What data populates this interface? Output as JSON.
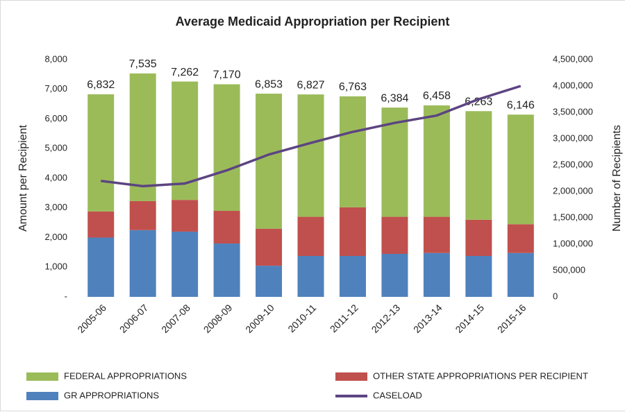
{
  "chart_data": {
    "type": "bar",
    "stacked": true,
    "title": "Average Medicaid Appropriation per Recipient",
    "y_label": "Amount per Recipient",
    "y2_label": "Number of Recipients",
    "categories": [
      "2005-06",
      "2006-07",
      "2007-08",
      "2008-09",
      "2009-10",
      "2010-11",
      "2011-12",
      "2012-13",
      "2013-14",
      "2014-15",
      "2015-16"
    ],
    "series": [
      {
        "name": "GR APPROPRIATIONS",
        "color": "#4f81bd",
        "type": "bar",
        "values": [
          2000,
          2250,
          2200,
          1800,
          1050,
          1380,
          1380,
          1450,
          1480,
          1380,
          1480
        ]
      },
      {
        "name": "OTHER STATE APPROPRIATIONS PER RECIPIENT",
        "color": "#c0504d",
        "type": "bar",
        "values": [
          880,
          980,
          1070,
          1100,
          1250,
          1320,
          1640,
          1250,
          1220,
          1220,
          970
        ]
      },
      {
        "name": "FEDERAL APPROPRIATIONS",
        "color": "#9bbb59",
        "type": "bar",
        "values": [
          3952,
          4305,
          3992,
          4270,
          4553,
          4127,
          3743,
          3684,
          3758,
          3663,
          3696
        ]
      },
      {
        "name": "CASELOAD",
        "color": "#5c4482",
        "type": "line",
        "axis": "y2",
        "values": [
          2200000,
          2100000,
          2150000,
          2400000,
          2700000,
          2920000,
          3130000,
          3300000,
          3440000,
          3750000,
          4000000
        ]
      }
    ],
    "totals": [
      6832,
      7535,
      7262,
      7170,
      6853,
      6827,
      6763,
      6384,
      6458,
      6263,
      6146
    ],
    "total_labels": [
      "6,832",
      "7,535",
      "7,262",
      "7,170",
      "6,853",
      "6,827",
      "6,763",
      "6,384",
      "6,458",
      "6,263",
      "6,146"
    ],
    "ylim": [
      0,
      8000
    ],
    "yticks": [
      {
        "value": 0,
        "label": "-"
      },
      {
        "value": 1000,
        "label": "1,000"
      },
      {
        "value": 2000,
        "label": "2,000"
      },
      {
        "value": 3000,
        "label": "3,000"
      },
      {
        "value": 4000,
        "label": "4,000"
      },
      {
        "value": 5000,
        "label": "5,000"
      },
      {
        "value": 6000,
        "label": "6,000"
      },
      {
        "value": 7000,
        "label": "7,000"
      },
      {
        "value": 8000,
        "label": "8,000"
      }
    ],
    "y2lim": [
      0,
      4500000
    ],
    "y2ticks": [
      0,
      {
        "value": 500000,
        "label": "500,000"
      },
      {
        "value": 1000000,
        "label": "1,000,000"
      },
      {
        "value": 1500000,
        "label": "1,500,000"
      },
      {
        "value": 2000000,
        "label": "2,000,000"
      },
      {
        "value": 2500000,
        "label": "2,500,000"
      },
      {
        "value": 3000000,
        "label": "3,000,000"
      },
      {
        "value": 3500000,
        "label": "3,500,000"
      },
      {
        "value": 4000000,
        "label": "4,000,000"
      },
      {
        "value": 4500000,
        "label": "4,500,000"
      }
    ],
    "grid": false,
    "legend": "bottom"
  }
}
